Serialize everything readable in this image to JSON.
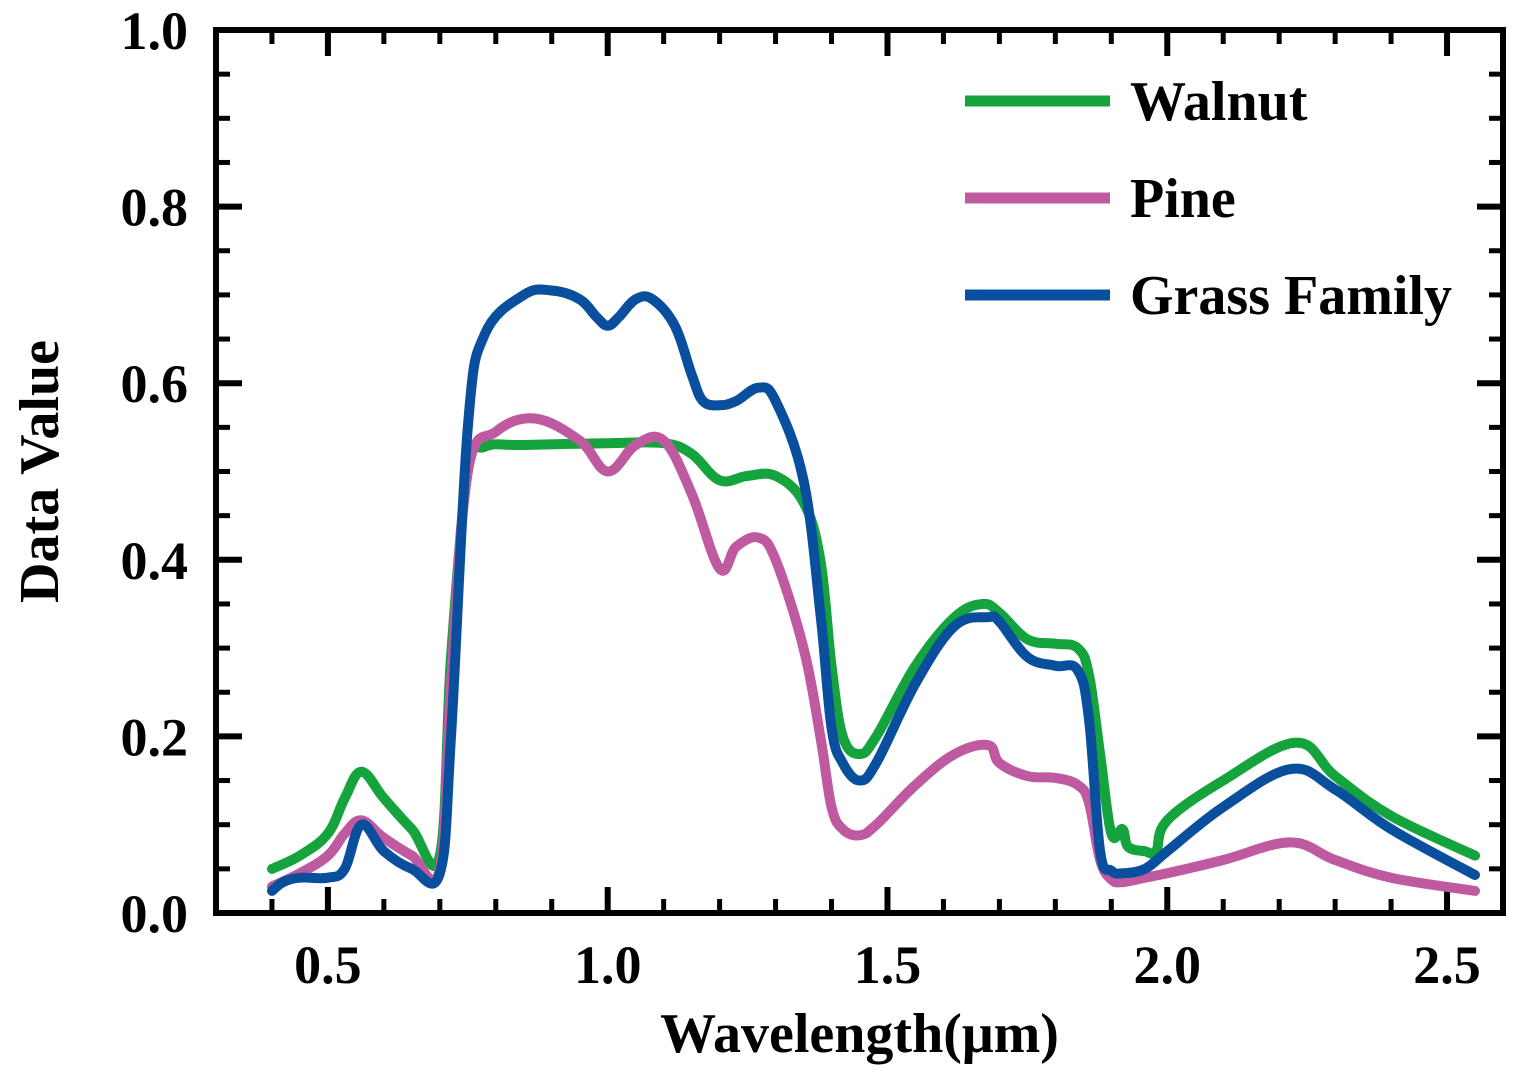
{
  "chart_data": {
    "type": "line",
    "title": "",
    "xlabel": "Wavelength(μm)",
    "ylabel": "Data Value",
    "xlim": [
      0.3,
      2.6
    ],
    "ylim": [
      0.0,
      1.0
    ],
    "xticks": [
      0.5,
      1.0,
      1.5,
      2.0,
      2.5
    ],
    "xtick_labels": [
      "0.5",
      "1.0",
      "1.5",
      "2.0",
      "2.5"
    ],
    "yticks": [
      0.0,
      0.2,
      0.4,
      0.6,
      0.8,
      1.0
    ],
    "ytick_labels": [
      "0.0",
      "0.2",
      "0.4",
      "0.6",
      "0.8",
      "1.0"
    ],
    "x_minor_step": 0.1,
    "y_minor_step": 0.05,
    "grid": false,
    "legend_position": "top-right",
    "series": [
      {
        "name": "Walnut",
        "color": "#14a33c",
        "x": [
          0.4,
          0.45,
          0.5,
          0.53,
          0.56,
          0.6,
          0.65,
          0.7,
          0.72,
          0.75,
          0.78,
          0.85,
          1.0,
          1.1,
          1.15,
          1.2,
          1.25,
          1.3,
          1.35,
          1.38,
          1.4,
          1.42,
          1.45,
          1.48,
          1.55,
          1.62,
          1.67,
          1.7,
          1.75,
          1.8,
          1.84,
          1.86,
          1.88,
          1.9,
          1.92,
          1.93,
          1.96,
          1.98,
          2.0,
          2.1,
          2.23,
          2.3,
          2.4,
          2.55
        ],
        "values": [
          0.05,
          0.065,
          0.09,
          0.13,
          0.16,
          0.13,
          0.095,
          0.065,
          0.29,
          0.5,
          0.528,
          0.53,
          0.532,
          0.532,
          0.52,
          0.49,
          0.495,
          0.495,
          0.465,
          0.4,
          0.28,
          0.2,
          0.18,
          0.2,
          0.28,
          0.335,
          0.35,
          0.34,
          0.31,
          0.305,
          0.3,
          0.27,
          0.18,
          0.09,
          0.095,
          0.075,
          0.07,
          0.07,
          0.105,
          0.15,
          0.193,
          0.155,
          0.11,
          0.065
        ]
      },
      {
        "name": "Pine",
        "color": "#c05aa0",
        "x": [
          0.4,
          0.45,
          0.5,
          0.53,
          0.56,
          0.6,
          0.65,
          0.7,
          0.72,
          0.75,
          0.8,
          0.87,
          0.95,
          1.0,
          1.05,
          1.1,
          1.15,
          1.2,
          1.23,
          1.27,
          1.3,
          1.35,
          1.38,
          1.4,
          1.42,
          1.45,
          1.48,
          1.55,
          1.62,
          1.68,
          1.7,
          1.75,
          1.8,
          1.84,
          1.86,
          1.88,
          1.9,
          1.92,
          1.96,
          2.0,
          2.1,
          2.22,
          2.3,
          2.4,
          2.55
        ],
        "values": [
          0.03,
          0.045,
          0.065,
          0.09,
          0.105,
          0.085,
          0.065,
          0.05,
          0.26,
          0.5,
          0.545,
          0.56,
          0.535,
          0.5,
          0.53,
          0.535,
          0.475,
          0.39,
          0.415,
          0.425,
          0.4,
          0.3,
          0.2,
          0.12,
          0.095,
          0.088,
          0.1,
          0.145,
          0.18,
          0.19,
          0.17,
          0.155,
          0.153,
          0.145,
          0.125,
          0.06,
          0.038,
          0.035,
          0.04,
          0.045,
          0.06,
          0.08,
          0.06,
          0.04,
          0.025
        ]
      },
      {
        "name": "Grass Family",
        "color": "#0a4f9e",
        "x": [
          0.4,
          0.42,
          0.45,
          0.5,
          0.53,
          0.56,
          0.6,
          0.65,
          0.7,
          0.72,
          0.75,
          0.78,
          0.85,
          0.9,
          0.95,
          0.98,
          1.0,
          1.02,
          1.05,
          1.08,
          1.12,
          1.15,
          1.17,
          1.2,
          1.23,
          1.27,
          1.3,
          1.35,
          1.38,
          1.4,
          1.42,
          1.45,
          1.48,
          1.55,
          1.62,
          1.68,
          1.7,
          1.75,
          1.8,
          1.84,
          1.86,
          1.88,
          1.9,
          1.92,
          1.96,
          2.0,
          2.1,
          2.22,
          2.3,
          2.4,
          2.55
        ],
        "values": [
          0.025,
          0.035,
          0.04,
          0.04,
          0.05,
          0.1,
          0.07,
          0.05,
          0.045,
          0.2,
          0.55,
          0.655,
          0.7,
          0.705,
          0.695,
          0.675,
          0.665,
          0.675,
          0.695,
          0.695,
          0.665,
          0.61,
          0.58,
          0.575,
          0.58,
          0.595,
          0.58,
          0.49,
          0.34,
          0.21,
          0.17,
          0.15,
          0.17,
          0.26,
          0.325,
          0.335,
          0.33,
          0.29,
          0.28,
          0.275,
          0.22,
          0.07,
          0.048,
          0.045,
          0.05,
          0.07,
          0.12,
          0.163,
          0.14,
          0.095,
          0.043
        ]
      }
    ]
  }
}
